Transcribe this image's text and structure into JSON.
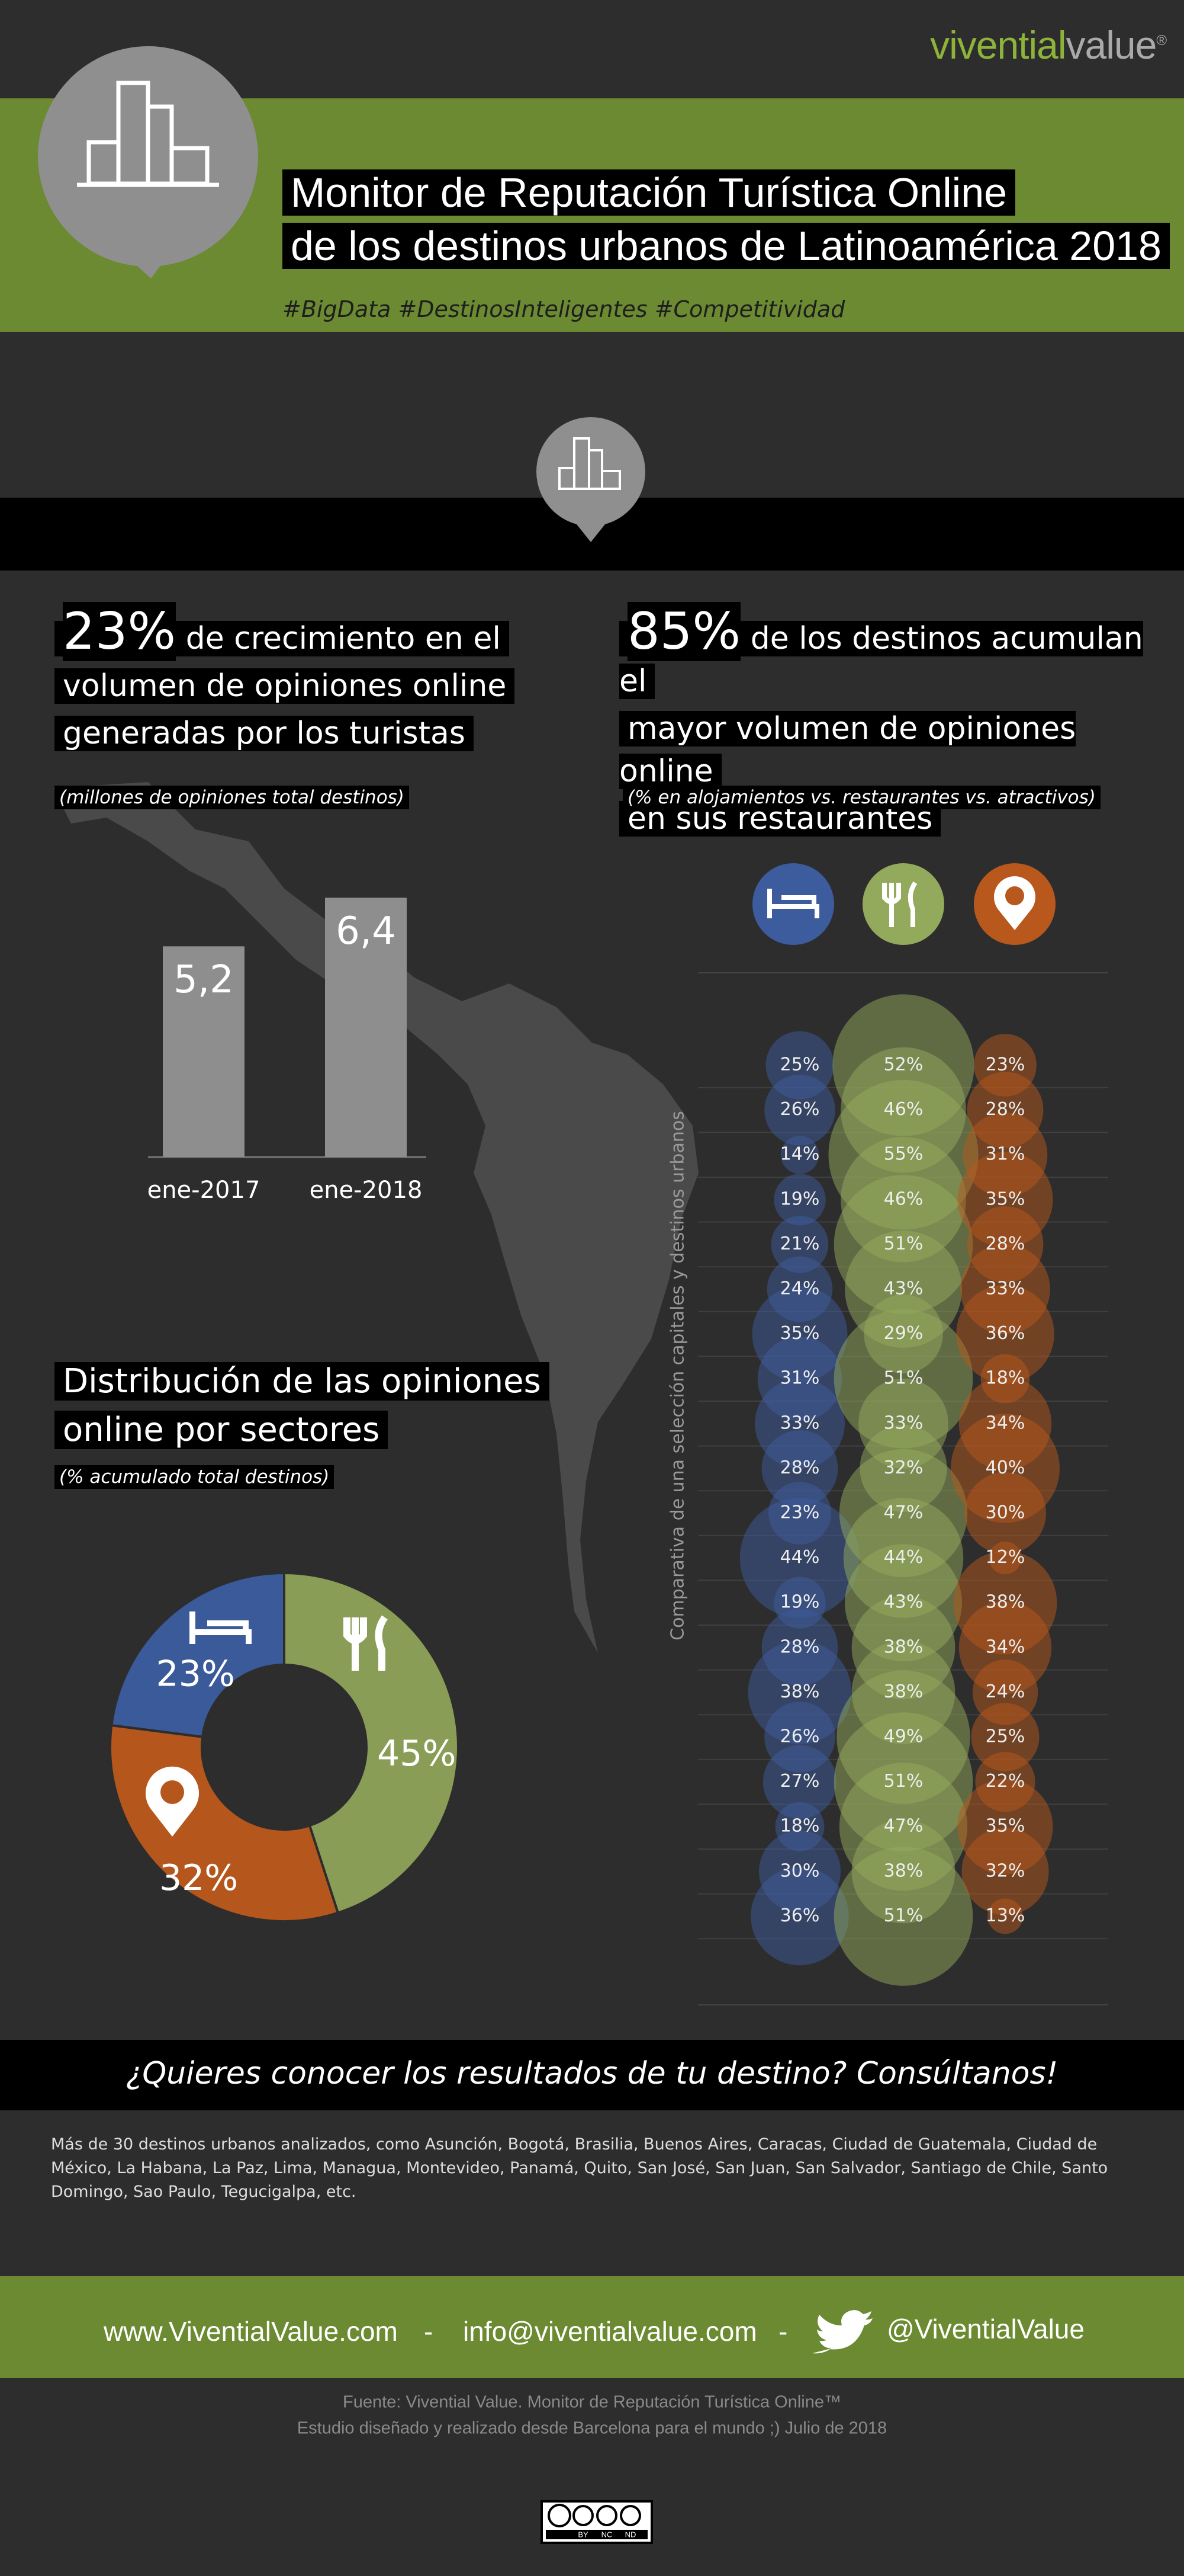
{
  "brand": {
    "name_a": "vivential",
    "name_b": "value",
    "mark": "®"
  },
  "header": {
    "title": [
      "Monitor de Reputación Turística Online",
      "de los destinos urbanos de Latinoamérica 2018"
    ],
    "hashtags": "#BigData #DestinosInteligentes #Competitividad"
  },
  "sections": [
    {
      "highlight": "23%",
      "text": [
        "de crecimiento en el",
        "volumen de opiniones online",
        "generadas por los turistas"
      ],
      "note": "(millones de opiniones total destinos)"
    },
    {
      "highlight": "85%",
      "text": [
        "de los destinos acumulan el",
        "mayor volumen de opiniones online",
        "en sus restaurantes"
      ],
      "note": "(% en alojamientos vs. restaurantes vs. atractivos)"
    },
    {
      "text": [
        "Distribución de las opiniones",
        "online por sectores"
      ],
      "note": "(% acumulado total destinos)"
    }
  ],
  "chart_data": [
    {
      "type": "bar",
      "categories": [
        "ene-2017",
        "ene-2018"
      ],
      "values": [
        5.2,
        6.4
      ],
      "value_labels": [
        "5,2",
        "6,4"
      ],
      "color": "#8e8e8e"
    },
    {
      "type": "bubble",
      "y_label": "Comparativa de una selección capitales y destinos urbanos",
      "series": [
        {
          "color": "#3d5c9e",
          "values": [
            25,
            26,
            14,
            19,
            21,
            24,
            35,
            31,
            33,
            28,
            23,
            44,
            19,
            28,
            38,
            26,
            27,
            18,
            30,
            36
          ],
          "value_labels": [
            "25%",
            "26%",
            "14%",
            "19%",
            "21%",
            "24%",
            "35%",
            "31%",
            "33%",
            "28%",
            "23%",
            "44%",
            "19%",
            "28%",
            "38%",
            "26%",
            "27%",
            "18%",
            "30%",
            "36%"
          ]
        },
        {
          "color": "#93a95c",
          "values": [
            52,
            46,
            55,
            46,
            51,
            43,
            29,
            51,
            33,
            32,
            47,
            44,
            43,
            38,
            38,
            49,
            51,
            47,
            38,
            51
          ],
          "value_labels": [
            "52%",
            "46%",
            "55%",
            "46%",
            "51%",
            "43%",
            "29%",
            "51%",
            "33%",
            "32%",
            "47%",
            "44%",
            "43%",
            "38%",
            "38%",
            "49%",
            "51%",
            "47%",
            "38%",
            "51%"
          ]
        },
        {
          "color": "#b8581c",
          "values": [
            23,
            28,
            31,
            35,
            28,
            33,
            36,
            18,
            34,
            40,
            30,
            12,
            38,
            34,
            24,
            25,
            22,
            35,
            32,
            13
          ],
          "value_labels": [
            "23%",
            "28%",
            "31%",
            "35%",
            "28%",
            "33%",
            "36%",
            "18%",
            "34%",
            "40%",
            "30%",
            "12%",
            "38%",
            "34%",
            "24%",
            "25%",
            "22%",
            "35%",
            "32%",
            "13%"
          ]
        }
      ]
    },
    {
      "type": "pie",
      "donut": true,
      "values": [
        45,
        32,
        23
      ],
      "value_labels": [
        "45%",
        "32%",
        "23%"
      ],
      "colors": [
        "#8a9d57",
        "#b5561c",
        "#3a5a99"
      ]
    }
  ],
  "cta": "¿Quieres conocer los resultados de tu destino? Consúltanos!",
  "destinations": "Más de 30 destinos urbanos analizados, como Asunción, Bogotá, Brasilia, Buenos Aires, Caracas, Ciudad de Guatemala, Ciudad de México, La Habana, La Paz, Lima, Managua, Montevideo, Panamá, Quito, San José, San Juan, San Salvador, Santiago de Chile, Santo Domingo, Sao Paulo, Tegucigalpa, etc.",
  "footer": {
    "links": [
      "www.ViventialValue.com",
      "info@viventialvalue.com",
      "@ViventialValue"
    ],
    "separator": "-"
  },
  "source": [
    "Fuente: Vivential Value. Monitor de Reputación Turística Online™",
    "Estudio diseñado y realizado desde Barcelona para el mundo ;) Julio de 2018"
  ],
  "license": [
    "BY",
    "NC",
    "ND"
  ]
}
